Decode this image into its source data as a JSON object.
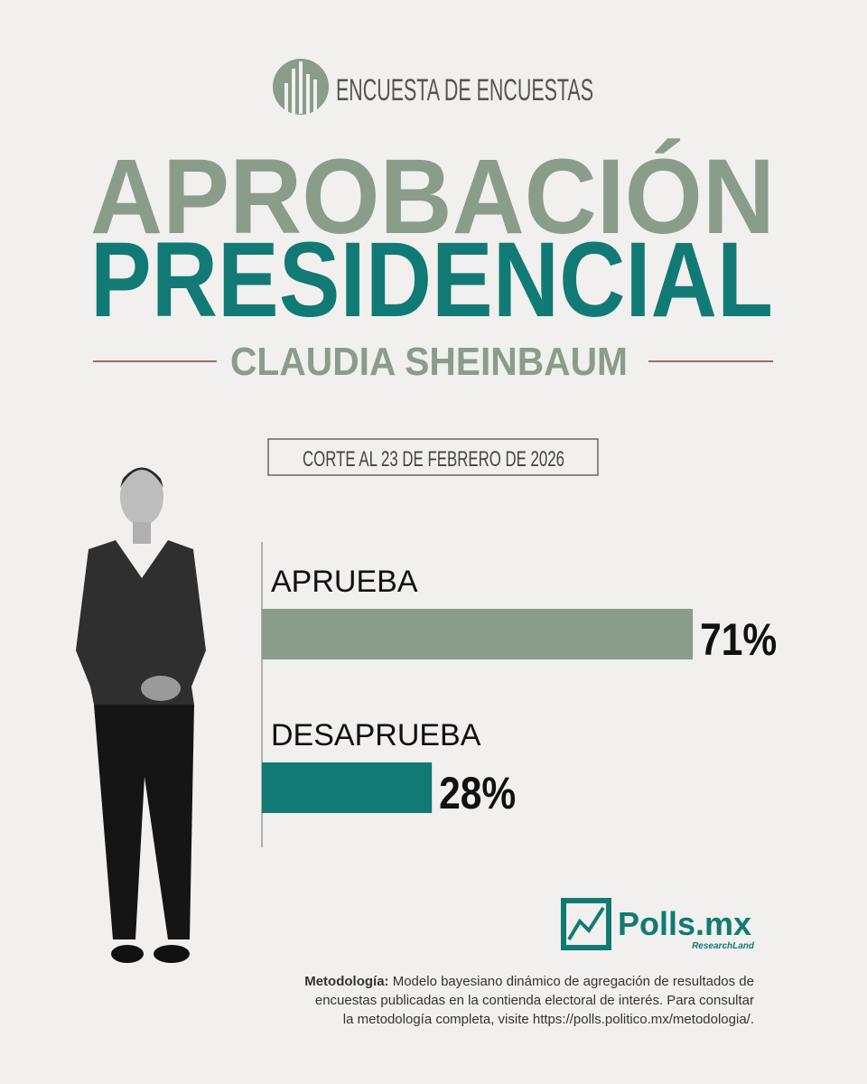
{
  "header": {
    "kicker": "ENCUESTA DE ENCUESTAS",
    "title_line1": "APROBACIÓN",
    "title_line2": "PRESIDENCIAL",
    "subtitle": "CLAUDIA SHEINBAUM",
    "cutoff": "CORTE AL 23 DE FEBRERO DE 2026"
  },
  "chart_data": {
    "type": "bar",
    "orientation": "horizontal",
    "categories": [
      "APRUEBA",
      "DESAPRUEBA"
    ],
    "values": [
      71,
      28
    ],
    "value_labels": [
      "71%",
      "28%"
    ],
    "colors": [
      "#8a9c8a",
      "#127a74"
    ]
  },
  "footer": {
    "brand": "Polls.mx",
    "brand_sub": "ResearchLand",
    "methodology_label": "Metodología:",
    "methodology_lines": [
      "Modelo bayesiano dinámico de agregación de resultados de",
      "encuestas publicadas en la contienda electoral de interés. Para consultar",
      "la metodología completa, visite https://polls.politico.mx/metodologia/."
    ]
  }
}
